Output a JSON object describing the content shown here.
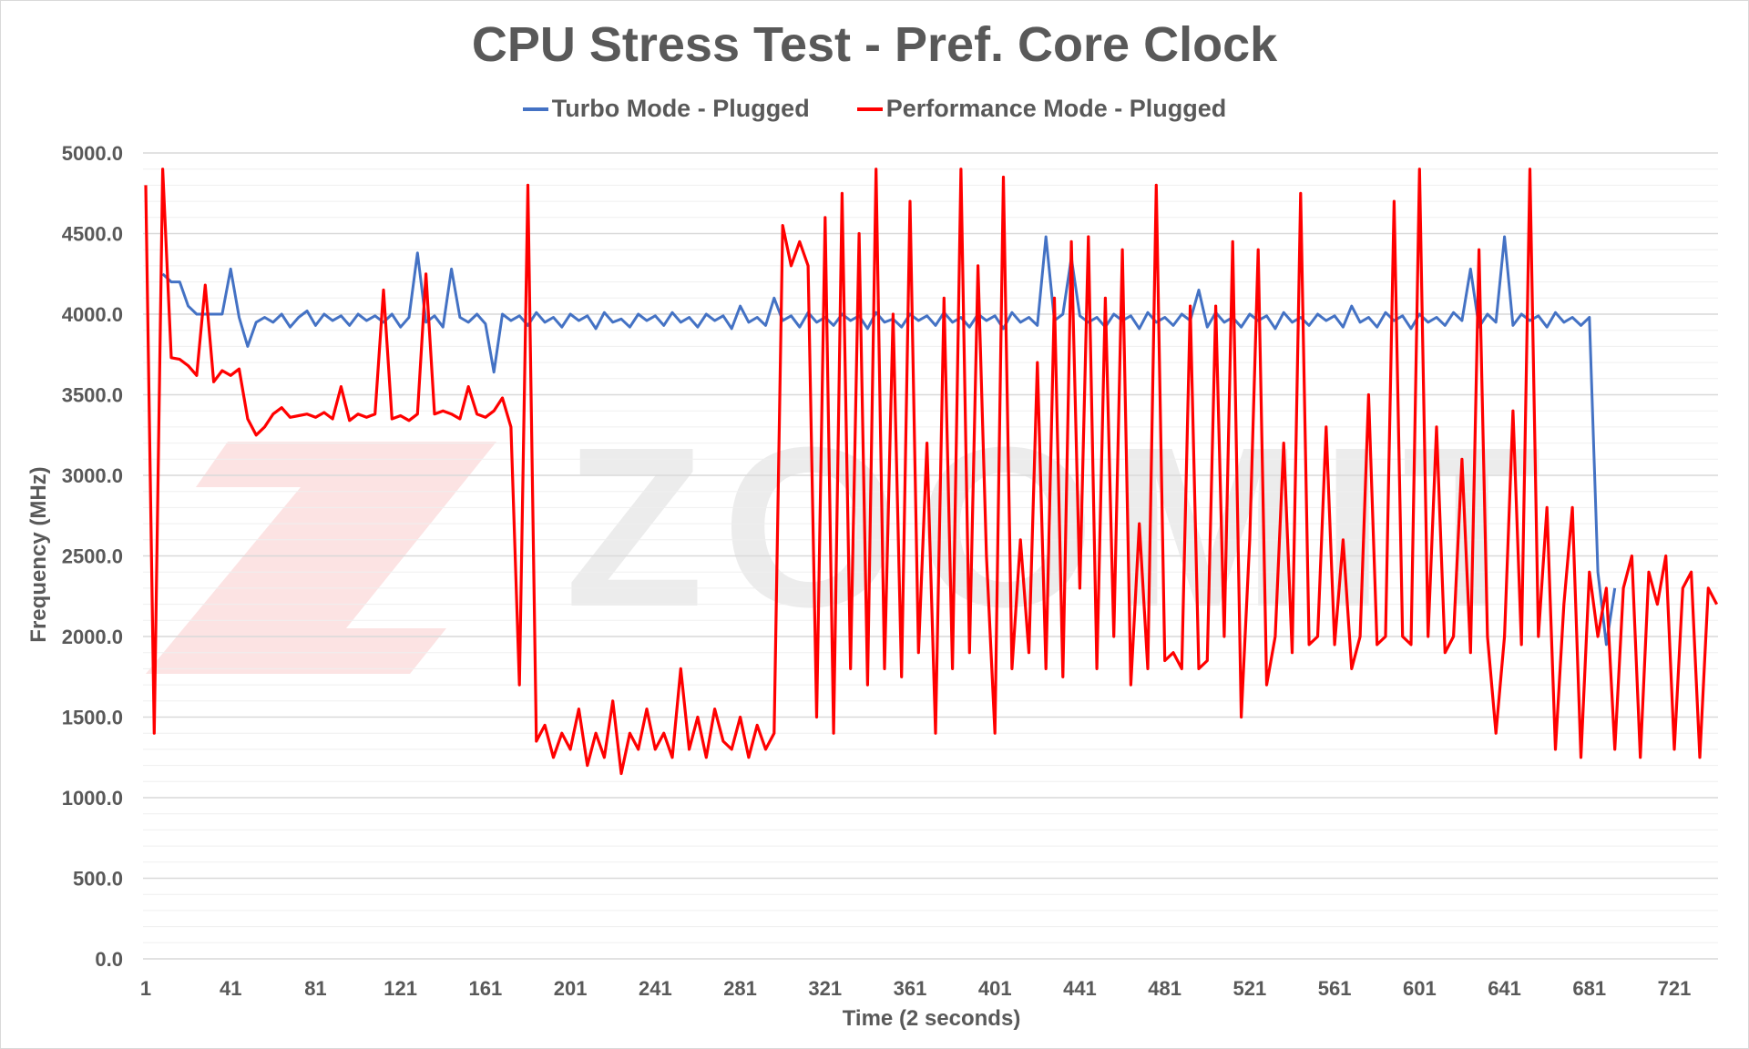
{
  "chart_data": {
    "type": "line",
    "title": "CPU Stress Test - Pref. Core Clock",
    "xlabel": "Time (2 seconds)",
    "ylabel": "Frequency (MHz)",
    "ylim": [
      0,
      5000
    ],
    "xlim": [
      1,
      741
    ],
    "yticks": [
      "0.0",
      "500.0",
      "1000.0",
      "1500.0",
      "2000.0",
      "2500.0",
      "3000.0",
      "3500.0",
      "4000.0",
      "4500.0",
      "5000.0"
    ],
    "xticks": [
      "1",
      "41",
      "81",
      "121",
      "161",
      "201",
      "241",
      "281",
      "321",
      "361",
      "401",
      "441",
      "481",
      "521",
      "561",
      "601",
      "641",
      "681",
      "721"
    ],
    "grid": true,
    "legend_position": "top",
    "watermark": "ZOOMIT",
    "series": [
      {
        "name": "Turbo Mode - Plugged",
        "color": "#4472C4",
        "x_start": 9,
        "x_step": 4,
        "values": [
          4250,
          4200,
          4200,
          4050,
          4000,
          4000,
          4000,
          4000,
          4280,
          3980,
          3800,
          3950,
          3980,
          3950,
          4000,
          3920,
          3980,
          4020,
          3930,
          4000,
          3960,
          3990,
          3930,
          4000,
          3960,
          3990,
          3950,
          4000,
          3920,
          3980,
          4380,
          3950,
          3990,
          3920,
          4280,
          3980,
          3950,
          4000,
          3940,
          3640,
          4000,
          3960,
          3990,
          3930,
          4010,
          3950,
          3980,
          3920,
          4000,
          3960,
          3990,
          3910,
          4010,
          3950,
          3970,
          3920,
          4000,
          3960,
          3990,
          3930,
          4010,
          3950,
          3980,
          3920,
          4000,
          3960,
          3990,
          3910,
          4050,
          3950,
          3980,
          3930,
          4100,
          3960,
          3990,
          3920,
          4010,
          3950,
          3980,
          3930,
          4000,
          3960,
          3990,
          3910,
          4010,
          3950,
          3970,
          3920,
          4000,
          3960,
          3990,
          3930,
          4010,
          3950,
          3980,
          3920,
          4000,
          3960,
          3990,
          3910,
          4010,
          3950,
          3980,
          3930,
          4480,
          3960,
          4000,
          4350,
          3990,
          3950,
          3980,
          3920,
          4000,
          3960,
          3990,
          3910,
          4010,
          3950,
          3980,
          3930,
          4000,
          3960,
          4150,
          3920,
          4010,
          3950,
          3980,
          3920,
          4000,
          3960,
          3990,
          3910,
          4010,
          3950,
          3980,
          3930,
          4000,
          3960,
          3990,
          3920,
          4050,
          3950,
          3980,
          3920,
          4010,
          3960,
          3990,
          3910,
          4000,
          3950,
          3980,
          3930,
          4010,
          3960,
          4280,
          3920,
          4000,
          3950,
          4480,
          3930,
          4000,
          3960,
          3990,
          3920,
          4010,
          3950,
          3980,
          3930,
          3980,
          2400,
          1950,
          2300
        ]
      },
      {
        "name": "Performance Mode - Plugged",
        "color": "#FF0000",
        "x_start": 1,
        "x_step": 4,
        "values": [
          4800,
          1400,
          4900,
          3730,
          3720,
          3680,
          3620,
          4180,
          3580,
          3650,
          3620,
          3660,
          3350,
          3250,
          3300,
          3380,
          3420,
          3360,
          3370,
          3380,
          3360,
          3390,
          3350,
          3550,
          3340,
          3380,
          3360,
          3380,
          4150,
          3350,
          3370,
          3340,
          3380,
          4250,
          3380,
          3400,
          3380,
          3350,
          3550,
          3380,
          3360,
          3400,
          3480,
          3300,
          1700,
          4800,
          1350,
          1450,
          1250,
          1400,
          1300,
          1550,
          1200,
          1400,
          1250,
          1600,
          1150,
          1400,
          1300,
          1550,
          1300,
          1400,
          1250,
          1800,
          1300,
          1500,
          1250,
          1550,
          1350,
          1300,
          1500,
          1250,
          1450,
          1300,
          1400,
          4550,
          4300,
          4450,
          4300,
          1500,
          4600,
          1400,
          4750,
          1800,
          4500,
          1700,
          4900,
          1800,
          4000,
          1750,
          4700,
          1900,
          3200,
          1400,
          4100,
          1800,
          4900,
          1900,
          4300,
          2500,
          1400,
          4850,
          1800,
          2600,
          1900,
          3700,
          1800,
          4100,
          1750,
          4450,
          2300,
          4480,
          1800,
          4100,
          2000,
          4400,
          1700,
          2700,
          1800,
          4800,
          1850,
          1900,
          1800,
          4050,
          1800,
          1850,
          4050,
          2000,
          4450,
          1500,
          2600,
          4400,
          1700,
          2000,
          3200,
          1900,
          4750,
          1950,
          2000,
          3300,
          1950,
          2600,
          1800,
          2000,
          3500,
          1950,
          2000,
          4700,
          2000,
          1950,
          4900,
          2000,
          3300,
          1900,
          2000,
          3100,
          1900,
          4400,
          2000,
          1400,
          2000,
          3400,
          1950,
          4900,
          2000,
          2800,
          1300,
          2200,
          2800,
          1250,
          2400,
          2000,
          2300,
          1300,
          2300,
          2500,
          1250,
          2400,
          2200,
          2500,
          1300,
          2300,
          2400,
          1250,
          2300,
          2200
        ]
      }
    ]
  }
}
